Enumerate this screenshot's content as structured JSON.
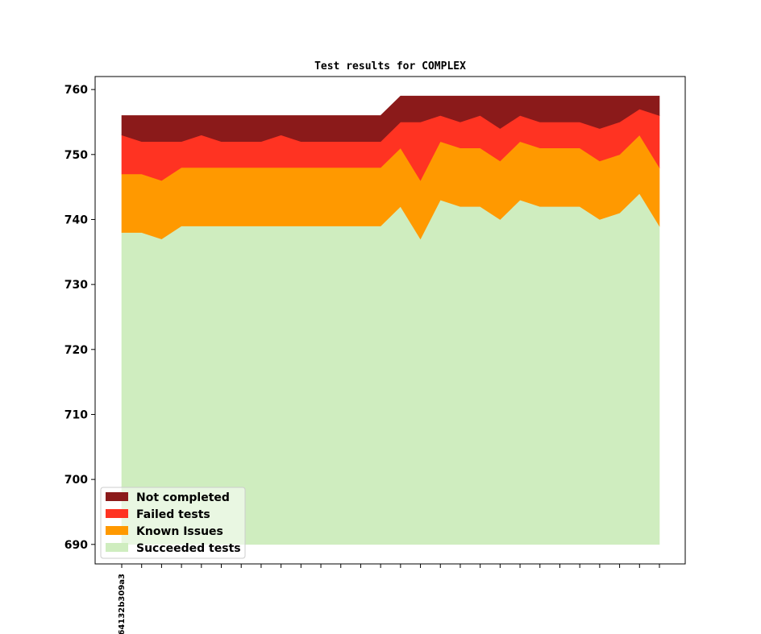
{
  "chart_data": {
    "type": "area",
    "stacked": true,
    "title": "Test results for COMPLEX",
    "xlabel": "",
    "ylabel": "",
    "ylim": [
      687,
      762
    ],
    "yticks": [
      690,
      700,
      710,
      720,
      730,
      740,
      750,
      760
    ],
    "xtick_labels": [
      "64132b309a3"
    ],
    "legend_location": "lower-left",
    "baseline": 690,
    "x": [
      0,
      1,
      2,
      3,
      4,
      5,
      6,
      7,
      8,
      9,
      10,
      11,
      12,
      13,
      14,
      15,
      16,
      17,
      18,
      19,
      20,
      21,
      22,
      23,
      24,
      25,
      26,
      27
    ],
    "series": [
      {
        "name": "Succeeded tests",
        "color": "#cfedbf",
        "cumulative": [
          738,
          738,
          737,
          739,
          739,
          739,
          739,
          739,
          739,
          739,
          739,
          739,
          739,
          739,
          742,
          737,
          743,
          742,
          742,
          740,
          743,
          742,
          742,
          742,
          740,
          741,
          744,
          739
        ]
      },
      {
        "name": "Known Issues",
        "color": "#ff9900",
        "cumulative": [
          747,
          747,
          746,
          748,
          748,
          748,
          748,
          748,
          748,
          748,
          748,
          748,
          748,
          748,
          751,
          746,
          752,
          751,
          751,
          749,
          752,
          751,
          751,
          751,
          749,
          750,
          753,
          748
        ]
      },
      {
        "name": "Failed tests",
        "color": "#ff3322",
        "cumulative": [
          753,
          752,
          752,
          752,
          753,
          752,
          752,
          752,
          753,
          752,
          752,
          752,
          752,
          752,
          755,
          755,
          756,
          755,
          756,
          754,
          756,
          755,
          755,
          755,
          754,
          755,
          757,
          756
        ]
      },
      {
        "name": "Not completed",
        "color": "#8b1a1a",
        "cumulative": [
          756,
          756,
          756,
          756,
          756,
          756,
          756,
          756,
          756,
          756,
          756,
          756,
          756,
          756,
          759,
          759,
          759,
          759,
          759,
          759,
          759,
          759,
          759,
          759,
          759,
          759,
          759,
          759
        ]
      }
    ],
    "legend_order": [
      "Not completed",
      "Failed tests",
      "Known Issues",
      "Succeeded tests"
    ]
  }
}
